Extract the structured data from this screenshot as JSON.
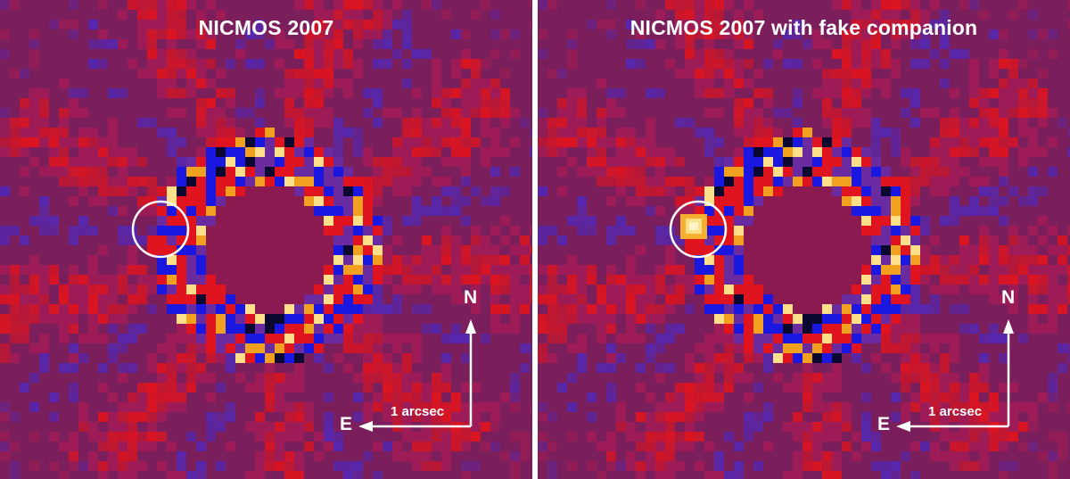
{
  "panels": [
    {
      "title": "NICMOS 2007",
      "fake_companion": false
    },
    {
      "title": "NICMOS 2007 with fake companion",
      "fake_companion": true
    }
  ],
  "compass": {
    "north": "N",
    "east": "E"
  },
  "scale_bar": {
    "label": "1 arcsec"
  },
  "colors": {
    "background": "#7a1f5c",
    "positive": "#e0141e",
    "negative": "#1a18e0",
    "hot": "#ffe08a",
    "annotation": "#ffffff"
  }
}
